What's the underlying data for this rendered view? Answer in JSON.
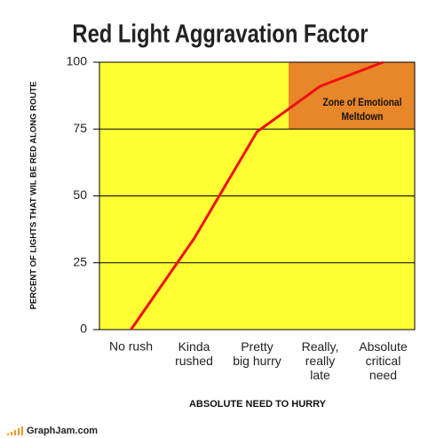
{
  "chart_data": {
    "type": "line",
    "title": "Red Light Aggravation Factor",
    "x_label": "ABSOLUTE NEED TO HURRY",
    "y_label": "PERCENT OF LIGHTS THAT WIL BE RED ALONG ROUTE",
    "categories": [
      "No rush",
      "Kinda\nrushed",
      "Pretty\nbig hurry",
      "Really,\nreally\nlate",
      "Absolute\ncritical\nneed"
    ],
    "series": [
      {
        "color": "#ee1111",
        "values": [
          0,
          34,
          74,
          91,
          100
        ]
      }
    ],
    "ylim": [
      0,
      100
    ],
    "yticks": [
      0,
      25,
      50,
      75,
      100
    ],
    "grid": true,
    "background": "#ffff33",
    "zone": {
      "label": "Zone of Emotional\nMeltdown",
      "yrange": [
        75,
        100
      ],
      "start_category": 3,
      "color": "#e8862a"
    }
  },
  "footer": {
    "site": "GraphJam.com"
  }
}
